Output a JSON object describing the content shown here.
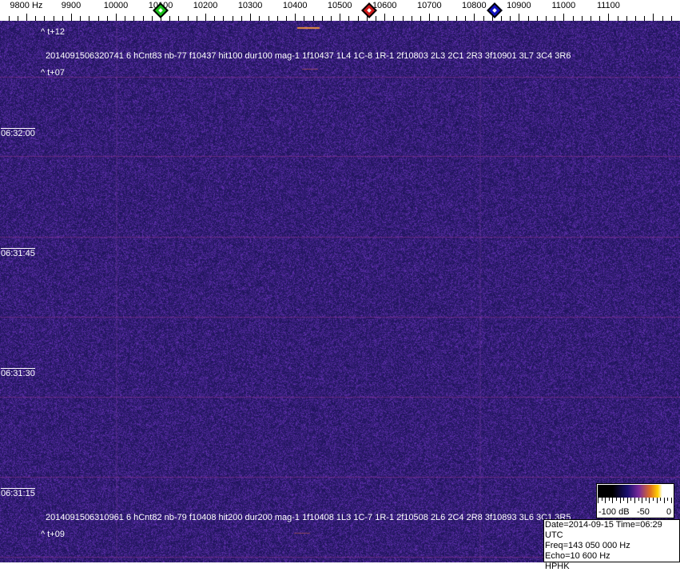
{
  "freq_scale": {
    "labels": [
      "9800 Hz",
      "9900",
      "10000",
      "10100",
      "10200",
      "10300",
      "10400",
      "10500",
      "10600",
      "10700",
      "10800",
      "10900",
      "11000",
      "11100"
    ],
    "values_hz": [
      9800,
      9900,
      10000,
      10100,
      10200,
      10300,
      10400,
      10500,
      10600,
      10700,
      10800,
      10900,
      11000,
      11100
    ],
    "markers": [
      {
        "name": "green",
        "freq_hz": 10100,
        "color": "#18c018"
      },
      {
        "name": "red",
        "freq_hz": 10565,
        "color": "#d01818"
      },
      {
        "name": "blue",
        "freq_hz": 10845,
        "color": "#1010c0"
      }
    ]
  },
  "overlays": {
    "t12": "^ t+12",
    "event1": "2014091506320741 6 hCnt83 nb-77 f10437 hit100 dur100 mag-1 1f10437 1L4 1C-8 1R-1 2f10803 2L3 2C1 2R3 3f10901 3L7 3C4 3R6",
    "t07": "^ t+07",
    "event2": "2014091506310961 6 hCnt82 nb-79 f10408 hit200 dur200 mag-1 1f10408 1L3 1C-7 1R-1 2f10508 2L6 2C4 2R8 3f10893 3L6 3C1 3R5",
    "t09": "^ t+09"
  },
  "timestamps": [
    "06:32:00",
    "06:31:45",
    "06:31:30",
    "06:31:15"
  ],
  "colorbar": {
    "labels": [
      "-100 dB",
      "-50",
      "0"
    ]
  },
  "info": {
    "line1": "Date=2014-09-15 Time=06:29 UTC",
    "line2": "Freq=143 050 000 Hz",
    "line3": "Echo=10 600 Hz",
    "line4": "HPHK"
  },
  "colors": {
    "background": "#241c6e",
    "noise": "#3a2a9a",
    "line": "#7a2a8a"
  }
}
